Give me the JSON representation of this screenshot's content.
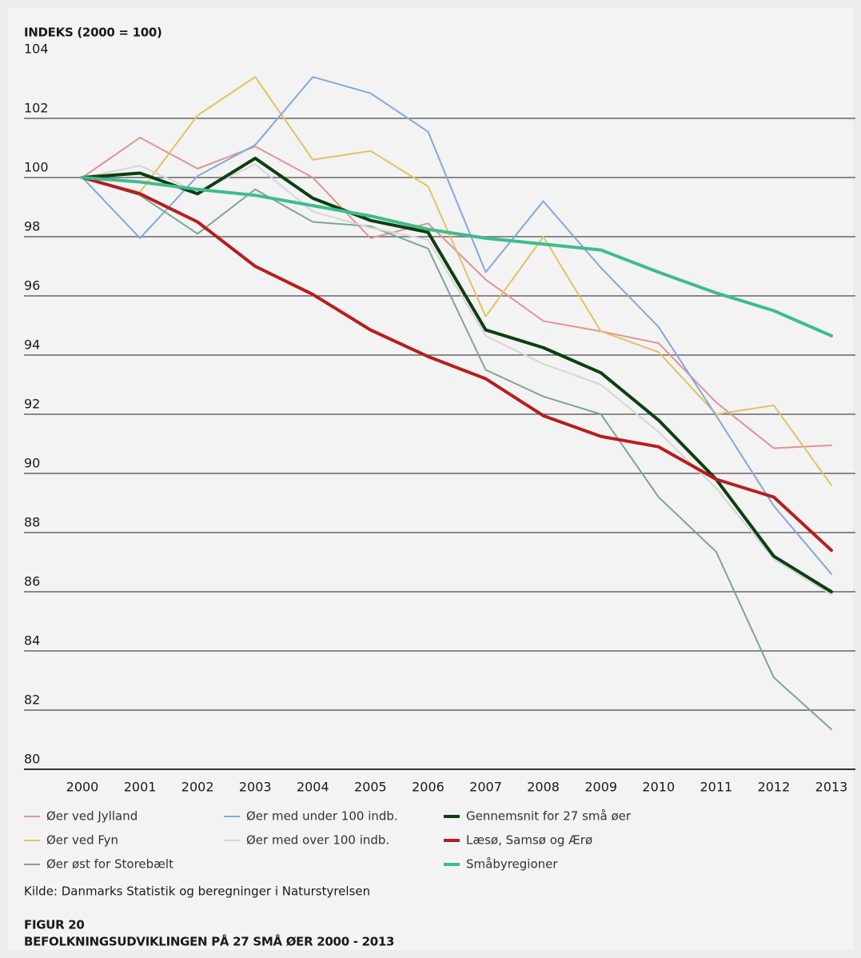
{
  "chart_data": {
    "type": "line",
    "y_axis_label": "INDEKS (2000 = 100)",
    "source": "Kilde: Danmarks Statistik og beregninger i Naturstyrelsen",
    "figure_label": "FIGUR 20",
    "title": "BEFOLKNINGSUDVIKLINGEN PÅ 27 SMÅ ØER 2000 - 2013",
    "categories": [
      "2000",
      "2001",
      "2002",
      "2003",
      "2004",
      "2005",
      "2006",
      "2007",
      "2008",
      "2009",
      "2010",
      "2011",
      "2012",
      "2013"
    ],
    "ylim": [
      80,
      104
    ],
    "yticks": [
      80,
      82,
      84,
      86,
      88,
      90,
      92,
      94,
      96,
      98,
      100,
      102,
      104
    ],
    "grid": true,
    "legend": "bottom",
    "series": [
      {
        "name": "Øer ved Jylland",
        "color": "#e39393",
        "line_width": 2,
        "values": [
          100,
          101.35,
          100.3,
          101.05,
          100,
          97.95,
          98.45,
          96.55,
          95.15,
          94.8,
          94.4,
          92.4,
          90.85,
          90.95
        ]
      },
      {
        "name": "Øer ved Fyn",
        "color": "#e3c263",
        "line_width": 2,
        "values": [
          100,
          99.5,
          102.1,
          103.4,
          100.6,
          100.9,
          99.7,
          95.3,
          98,
          94.8,
          94.1,
          92,
          92.3,
          89.6
        ]
      },
      {
        "name": "Øer øst for Storebælt",
        "color": "#7fa592",
        "line_width": 2,
        "values": [
          100,
          99.4,
          98.1,
          99.6,
          98.5,
          98.35,
          97.6,
          93.5,
          92.6,
          92,
          89.2,
          87.35,
          83.1,
          81.35
        ]
      },
      {
        "name": "Øer med under 100 indb.",
        "color": "#82a9dc",
        "line_width": 2,
        "values": [
          100,
          97.95,
          100.05,
          101.1,
          103.4,
          102.85,
          101.55,
          96.8,
          99.2,
          96.95,
          94.95,
          91.95,
          88.9,
          86.6
        ]
      },
      {
        "name": "Øer med over 100 indb.",
        "color": "#d6d6d6",
        "line_width": 2,
        "values": [
          100,
          100.4,
          99.5,
          100.45,
          98.85,
          98.3,
          97.9,
          94.65,
          93.7,
          93,
          91.4,
          89.5,
          87.1,
          85.9
        ]
      },
      {
        "name": "Gennemsnit for 27 små øer",
        "color": "#0d3f10",
        "line_width": 4,
        "values": [
          100,
          100.15,
          99.45,
          100.65,
          99.3,
          98.55,
          98.15,
          94.85,
          94.25,
          93.4,
          91.8,
          89.8,
          87.2,
          86
        ]
      },
      {
        "name": "Læsø, Samsø og Ærø",
        "color": "#b81d1d",
        "line_width": 4,
        "values": [
          100,
          99.45,
          98.5,
          97,
          96.05,
          94.85,
          93.95,
          93.2,
          91.95,
          91.25,
          90.9,
          89.8,
          89.2,
          87.4
        ]
      },
      {
        "name": "Småbyregioner",
        "color": "#3fbc8b",
        "line_width": 4,
        "values": [
          100,
          99.85,
          99.6,
          99.4,
          99.05,
          98.7,
          98.25,
          97.95,
          97.75,
          97.55,
          96.8,
          96.1,
          95.5,
          94.65
        ]
      }
    ]
  }
}
